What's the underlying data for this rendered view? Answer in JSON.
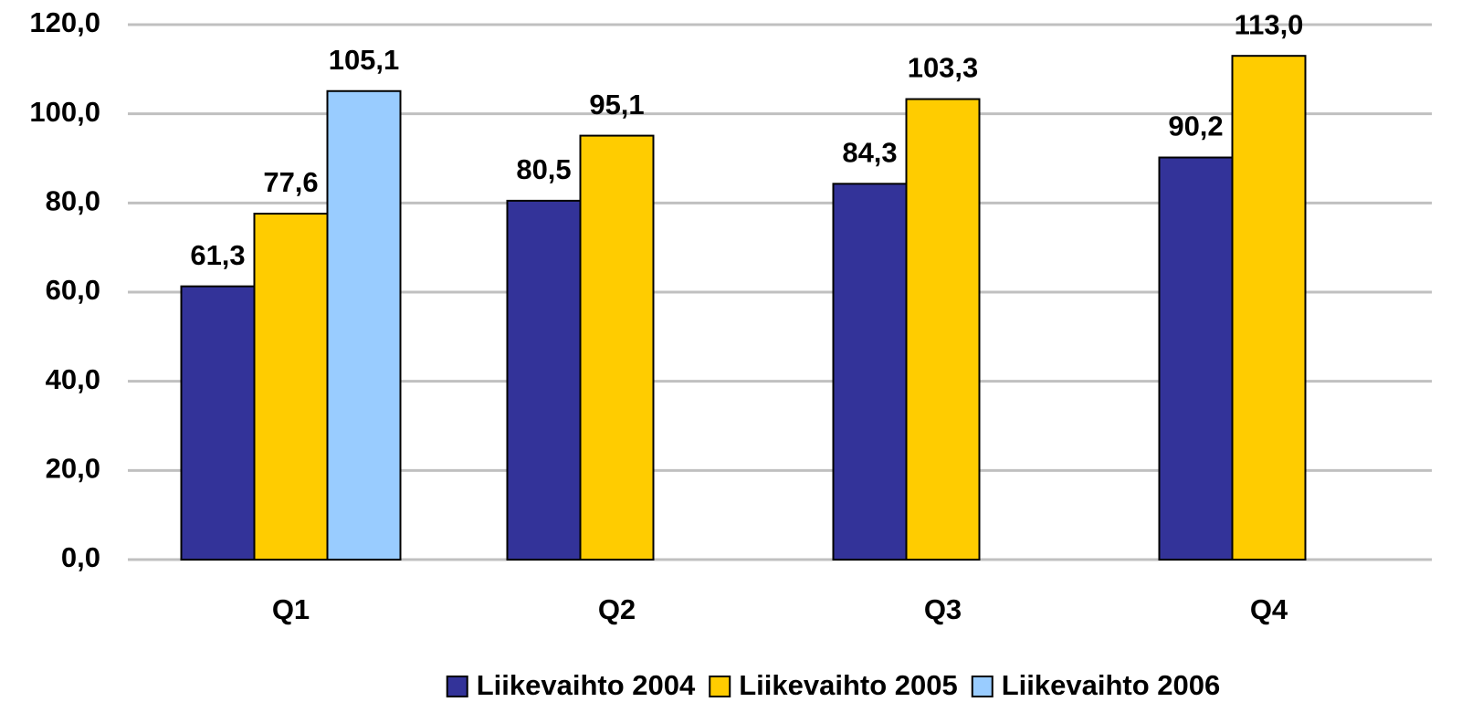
{
  "chart_data": {
    "type": "bar",
    "categories": [
      "Q1",
      "Q2",
      "Q3",
      "Q4"
    ],
    "series": [
      {
        "name": "Liikevaihto 2004",
        "color": "#333399",
        "values": [
          61.3,
          80.5,
          84.3,
          90.2
        ],
        "value_labels": [
          "61,3",
          "80,5",
          "84,3",
          "90,2"
        ]
      },
      {
        "name": "Liikevaihto 2005",
        "color": "#ffcc00",
        "values": [
          77.6,
          95.1,
          103.3,
          113.0
        ],
        "value_labels": [
          "77,6",
          "95,1",
          "103,3",
          "113,0"
        ]
      },
      {
        "name": "Liikevaihto 2006",
        "color": "#99ccff",
        "values": [
          105.1,
          null,
          null,
          null
        ],
        "value_labels": [
          "105,1",
          null,
          null,
          null
        ]
      }
    ],
    "ylim": [
      0,
      120
    ],
    "yticks": [
      {
        "value": 0,
        "label": "0,0"
      },
      {
        "value": 20,
        "label": "20,0"
      },
      {
        "value": 40,
        "label": "40,0"
      },
      {
        "value": 60,
        "label": "60,0"
      },
      {
        "value": 80,
        "label": "80,0"
      },
      {
        "value": 100,
        "label": "100,0"
      },
      {
        "value": 120,
        "label": "120,0"
      }
    ],
    "grid": true,
    "legend": "bottom"
  }
}
